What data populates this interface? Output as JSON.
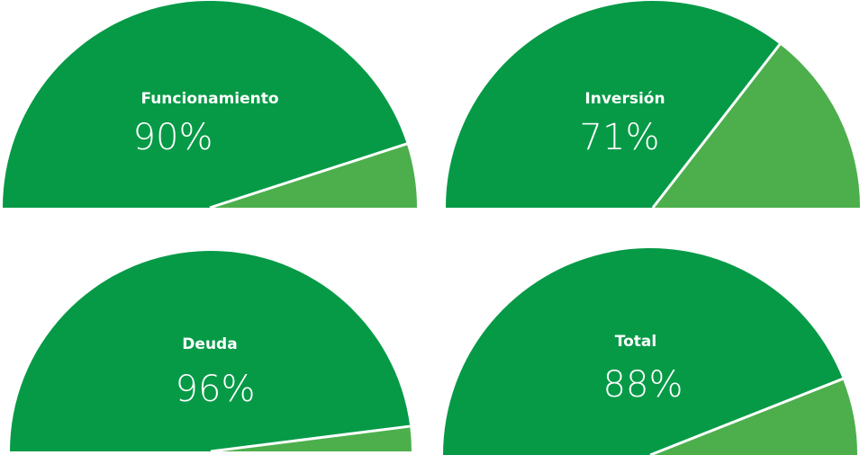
{
  "chart_data": [
    {
      "type": "gauge",
      "title": "Funcionamiento",
      "values": [
        90
      ],
      "value_labels": [
        "90%"
      ],
      "ylim": [
        0,
        100
      ],
      "color": "#069a47",
      "remainder_color": "#4caf4c"
    },
    {
      "type": "gauge",
      "title": "Inversión",
      "values": [
        71
      ],
      "value_labels": [
        "71%"
      ],
      "ylim": [
        0,
        100
      ],
      "color": "#069a47",
      "remainder_color": "#4caf4c"
    },
    {
      "type": "gauge",
      "title": "Deuda",
      "values": [
        96
      ],
      "value_labels": [
        "96%"
      ],
      "ylim": [
        0,
        100
      ],
      "color": "#069a47",
      "remainder_color": "#4caf4c"
    },
    {
      "type": "gauge",
      "title": "Total",
      "values": [
        88
      ],
      "value_labels": [
        "88%"
      ],
      "ylim": [
        0,
        100
      ],
      "color": "#069a47",
      "remainder_color": "#4caf4c"
    }
  ]
}
